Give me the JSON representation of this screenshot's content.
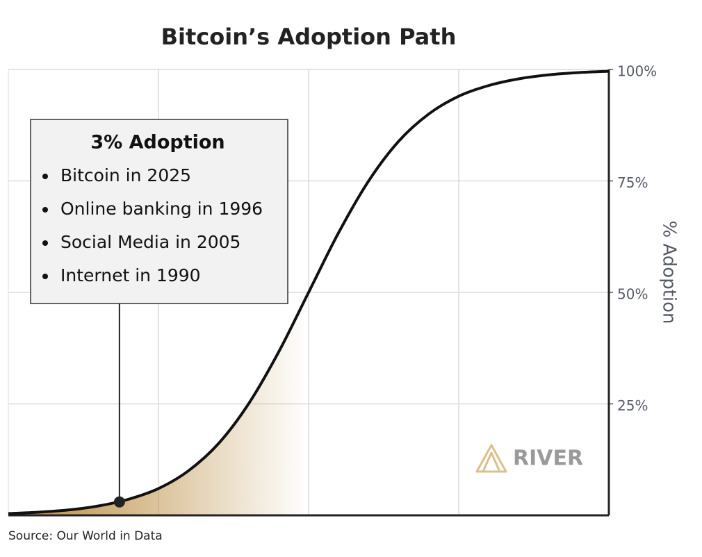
{
  "chart_data": {
    "type": "line",
    "title": "Bitcoin’s Adoption Path",
    "y_label": "% Adoption",
    "x": [
      0,
      5,
      10,
      15,
      20,
      25,
      30,
      35,
      40,
      45,
      50,
      55,
      60,
      65,
      70,
      75,
      80,
      85,
      90,
      95,
      100
    ],
    "values": [
      0.4,
      0.7,
      1.2,
      2.1,
      3.6,
      6.0,
      10.0,
      16.1,
      25.0,
      36.6,
      50,
      63.4,
      75.0,
      83.9,
      90.0,
      94.0,
      96.4,
      97.9,
      98.8,
      99.3,
      99.6
    ],
    "color": "#111111",
    "fill_color": "#b8893a",
    "xlim": [
      0,
      100
    ],
    "ylim": [
      0,
      100
    ],
    "yticks": [
      {
        "value": 25,
        "label": "25%"
      },
      {
        "value": 50,
        "label": "50%"
      },
      {
        "value": 75,
        "label": "75%"
      },
      {
        "value": 100,
        "label": "100%"
      }
    ],
    "grid": true,
    "annotation": {
      "x": 18.5,
      "y": 3,
      "title": "3% Adoption",
      "items": [
        "Bitcoin in 2025",
        "Online banking in 1996",
        "Social Media in 2005",
        "Internet in 1990"
      ]
    },
    "logo": "RIVER",
    "source": "Source: Our World in Data"
  }
}
